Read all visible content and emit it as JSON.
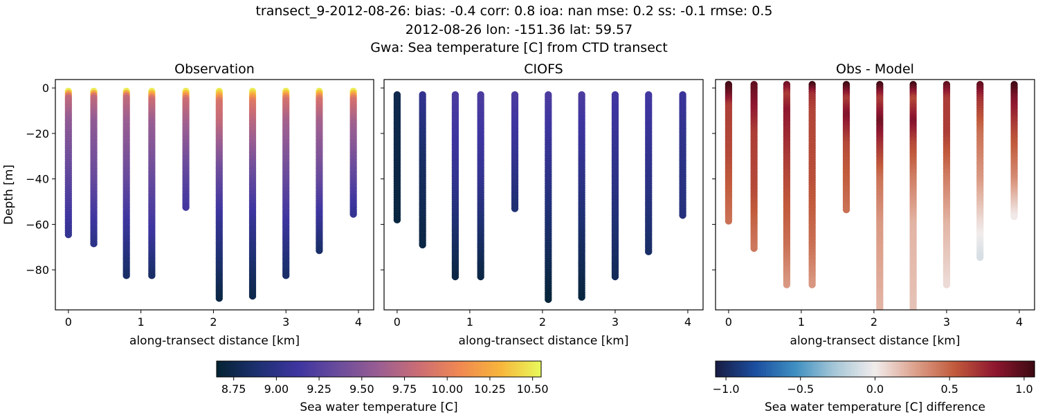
{
  "title_lines": [
    "transect_9-2012-08-26: bias: -0.4  corr: 0.8  ioa: nan  mse: 0.2  ss: -0.1  rmse: 0.5",
    "2012-08-26 lon: -151.36 lat: 59.57",
    "Gwa: Sea temperature [C] from CTD transect"
  ],
  "chart_data": [
    {
      "type": "scatter",
      "title": "Observation",
      "xlabel": "along-transect distance [km]",
      "ylabel": "Depth [m]",
      "xlim": [
        -0.18,
        4.21
      ],
      "ylim": [
        -97.6,
        3.7
      ],
      "xticks": [
        "0",
        "1",
        "2",
        "3",
        "4"
      ],
      "yticks": [
        "0",
        "−20",
        "−40",
        "−60",
        "−80"
      ],
      "colormap": "thermal",
      "clim": [
        8.65,
        10.55
      ],
      "casts": [
        {
          "x": 0.0,
          "top": -1.5,
          "bottom": -65,
          "depths": [
            -1.5,
            -4,
            -15,
            -40,
            -65
          ],
          "values": [
            10.5,
            9.8,
            9.55,
            9.3,
            9.05
          ]
        },
        {
          "x": 0.35,
          "top": -1.5,
          "bottom": -69,
          "depths": [
            -1.5,
            -4,
            -15,
            -40,
            -69
          ],
          "values": [
            10.5,
            9.8,
            9.55,
            9.35,
            9.0
          ]
        },
        {
          "x": 0.8,
          "top": -1.5,
          "bottom": -83,
          "depths": [
            -1.5,
            -4,
            -15,
            -40,
            -65,
            -83
          ],
          "values": [
            10.5,
            9.8,
            9.6,
            9.35,
            9.05,
            8.85
          ]
        },
        {
          "x": 1.15,
          "top": -1.5,
          "bottom": -83,
          "depths": [
            -1.5,
            -5,
            -15,
            -40,
            -65,
            -83
          ],
          "values": [
            10.5,
            9.85,
            9.6,
            9.35,
            9.1,
            8.85
          ]
        },
        {
          "x": 1.62,
          "top": -1.5,
          "bottom": -53,
          "depths": [
            -1.5,
            -5,
            -15,
            -35,
            -53
          ],
          "values": [
            10.5,
            9.85,
            9.65,
            9.35,
            9.15
          ]
        },
        {
          "x": 2.08,
          "top": -1.5,
          "bottom": -93,
          "depths": [
            -1.5,
            -6,
            -15,
            -35,
            -60,
            -80,
            -93
          ],
          "values": [
            10.5,
            9.9,
            9.8,
            9.4,
            9.05,
            8.85,
            8.72
          ]
        },
        {
          "x": 2.54,
          "top": -1.5,
          "bottom": -92,
          "depths": [
            -1.5,
            -6,
            -15,
            -35,
            -60,
            -80,
            -92
          ],
          "values": [
            10.5,
            9.95,
            9.75,
            9.4,
            9.05,
            8.85,
            8.75
          ]
        },
        {
          "x": 3.0,
          "top": -1.5,
          "bottom": -83,
          "depths": [
            -1.5,
            -5,
            -15,
            -40,
            -65,
            -83
          ],
          "values": [
            10.5,
            9.9,
            9.65,
            9.35,
            9.05,
            8.85
          ]
        },
        {
          "x": 3.46,
          "top": -1.5,
          "bottom": -72,
          "depths": [
            -1.5,
            -5,
            -15,
            -40,
            -60,
            -72
          ],
          "values": [
            10.5,
            9.9,
            9.65,
            9.35,
            9.05,
            8.85
          ]
        },
        {
          "x": 3.93,
          "top": -1.5,
          "bottom": -56,
          "depths": [
            -1.5,
            -5,
            -15,
            -40,
            -56
          ],
          "values": [
            10.5,
            9.9,
            9.65,
            9.3,
            9.05
          ]
        }
      ]
    },
    {
      "type": "scatter",
      "title": "CIOFS",
      "xlabel": "along-transect distance [km]",
      "xlim": [
        -0.18,
        4.21
      ],
      "ylim": [
        -97.6,
        3.7
      ],
      "xticks": [
        "0",
        "1",
        "2",
        "3",
        "4"
      ],
      "colormap": "thermal",
      "clim": [
        8.65,
        10.55
      ],
      "casts": [
        {
          "x": 0.0,
          "top": -3,
          "bottom": -58,
          "depths": [
            -3,
            -58
          ],
          "values": [
            8.76,
            8.7
          ]
        },
        {
          "x": 0.35,
          "top": -3,
          "bottom": -69,
          "depths": [
            -3,
            -30,
            -69
          ],
          "values": [
            9.05,
            8.85,
            8.72
          ]
        },
        {
          "x": 0.8,
          "top": -3,
          "bottom": -83,
          "depths": [
            -3,
            -40,
            -83
          ],
          "values": [
            9.2,
            9.05,
            8.72
          ]
        },
        {
          "x": 1.15,
          "top": -3,
          "bottom": -83,
          "depths": [
            -3,
            -40,
            -83
          ],
          "values": [
            9.2,
            9.05,
            8.72
          ]
        },
        {
          "x": 1.62,
          "top": -3,
          "bottom": -53,
          "depths": [
            -3,
            -30,
            -53
          ],
          "values": [
            9.2,
            9.05,
            8.9
          ]
        },
        {
          "x": 2.08,
          "top": -3,
          "bottom": -93,
          "depths": [
            -3,
            -40,
            -93
          ],
          "values": [
            9.2,
            9.0,
            8.68
          ]
        },
        {
          "x": 2.54,
          "top": -3,
          "bottom": -92,
          "depths": [
            -3,
            -40,
            -92
          ],
          "values": [
            9.2,
            9.0,
            8.7
          ]
        },
        {
          "x": 3.0,
          "top": -3,
          "bottom": -83,
          "depths": [
            -3,
            -40,
            -83
          ],
          "values": [
            9.15,
            9.0,
            8.8
          ]
        },
        {
          "x": 3.46,
          "top": -3,
          "bottom": -72,
          "depths": [
            -3,
            -40,
            -72
          ],
          "values": [
            9.15,
            9.0,
            8.85
          ]
        },
        {
          "x": 3.93,
          "top": -3,
          "bottom": -56,
          "depths": [
            -3,
            -30,
            -56
          ],
          "values": [
            9.1,
            9.0,
            8.95
          ]
        }
      ]
    },
    {
      "type": "scatter",
      "title": "Obs - Model",
      "xlabel": "along-transect distance [km]",
      "xlim": [
        -0.18,
        4.21
      ],
      "ylim": [
        -97.6,
        3.7
      ],
      "xticks": [
        "0",
        "1",
        "2",
        "3",
        "4"
      ],
      "colormap": "balance",
      "clim": [
        -1.07,
        1.07
      ],
      "casts": [
        {
          "x": 0.0,
          "top": 1.5,
          "bottom": -59,
          "depths": [
            1.5,
            -3,
            -8,
            -30,
            -59
          ],
          "values": [
            1.05,
            0.9,
            0.65,
            0.6,
            0.45
          ]
        },
        {
          "x": 0.35,
          "top": 1.5,
          "bottom": -71,
          "depths": [
            1.5,
            -5,
            -20,
            -45,
            -71
          ],
          "values": [
            0.95,
            0.85,
            0.65,
            0.6,
            0.42
          ]
        },
        {
          "x": 0.8,
          "top": 1.5,
          "bottom": -87,
          "depths": [
            1.5,
            -3,
            -10,
            -40,
            -70,
            -87
          ],
          "values": [
            0.9,
            0.65,
            0.8,
            0.6,
            0.45,
            0.3
          ]
        },
        {
          "x": 1.15,
          "top": 1.5,
          "bottom": -87,
          "depths": [
            1.5,
            -3,
            -10,
            -40,
            -70,
            -87
          ],
          "values": [
            1.05,
            0.7,
            0.62,
            0.58,
            0.45,
            0.3
          ]
        },
        {
          "x": 1.62,
          "top": 1.5,
          "bottom": -54,
          "depths": [
            1.5,
            -5,
            -12,
            -25,
            -54
          ],
          "values": [
            1.05,
            0.65,
            0.85,
            0.6,
            0.45
          ]
        },
        {
          "x": 2.08,
          "top": 1.5,
          "bottom": -98,
          "depths": [
            1.5,
            -5,
            -15,
            -25,
            -40,
            -60,
            -98
          ],
          "values": [
            1.05,
            0.65,
            0.9,
            0.7,
            0.45,
            0.3,
            0.2
          ]
        },
        {
          "x": 2.54,
          "top": 1.5,
          "bottom": -98,
          "depths": [
            1.5,
            -5,
            -15,
            -25,
            -40,
            -60,
            -98
          ],
          "values": [
            1.05,
            0.6,
            0.85,
            0.6,
            0.4,
            0.2,
            0.15
          ]
        },
        {
          "x": 3.0,
          "top": 1.5,
          "bottom": -87,
          "depths": [
            1.5,
            -5,
            -20,
            -40,
            -60,
            -87
          ],
          "values": [
            0.95,
            0.65,
            0.65,
            0.4,
            0.2,
            0.06
          ]
        },
        {
          "x": 3.46,
          "top": 1.5,
          "bottom": -75,
          "depths": [
            1.5,
            -5,
            -20,
            -40,
            -60,
            -75
          ],
          "values": [
            0.95,
            0.7,
            0.45,
            0.3,
            0.05,
            -0.1
          ]
        },
        {
          "x": 3.93,
          "top": 1.5,
          "bottom": -57,
          "depths": [
            1.5,
            -5,
            -20,
            -40,
            -57
          ],
          "values": [
            1.05,
            0.85,
            0.6,
            0.35,
            0.0
          ]
        }
      ]
    }
  ],
  "colorbars": [
    {
      "label": "Sea water temperature [C]",
      "colormap": "thermal",
      "range": [
        8.65,
        10.55
      ],
      "ticks": [
        8.75,
        9.0,
        9.25,
        9.5,
        9.75,
        10.0,
        10.25,
        10.5
      ],
      "tick_labels": [
        "8.75",
        "9.00",
        "9.25",
        "9.50",
        "9.75",
        "10.00",
        "10.25",
        "10.50"
      ]
    },
    {
      "label": "Sea water temperature [C] difference",
      "colormap": "balance",
      "range": [
        -1.07,
        1.07
      ],
      "ticks": [
        -1.0,
        -0.5,
        0.0,
        0.5,
        1.0
      ],
      "tick_labels": [
        "−1.0",
        "−0.5",
        "0.0",
        "0.5",
        "1.0"
      ]
    }
  ],
  "colormaps": {
    "thermal": [
      "#042333",
      "#1d3070",
      "#3e35a0",
      "#6a4c9c",
      "#9a5e92",
      "#cc6d74",
      "#f08952",
      "#f7b53b",
      "#e8fa5b"
    ],
    "balance": [
      "#181c43",
      "#1b4ea0",
      "#3f8fc1",
      "#a7c8d8",
      "#f1ecec",
      "#dda18c",
      "#c15a3b",
      "#8f1730",
      "#3c0912"
    ]
  }
}
